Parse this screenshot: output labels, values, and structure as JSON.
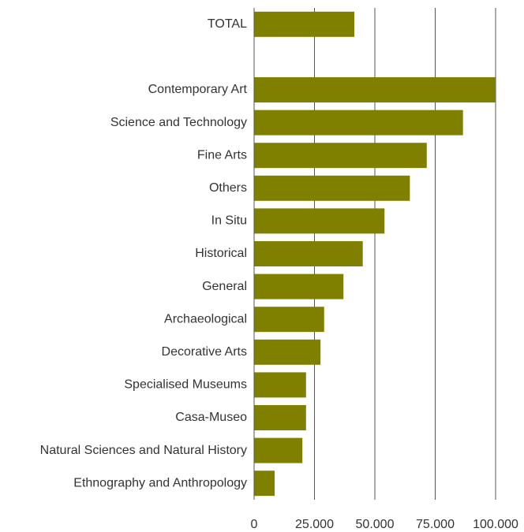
{
  "chart_data": {
    "type": "bar",
    "orientation": "horizontal",
    "categories": [
      "TOTAL",
      "",
      "Contemporary Art",
      "Science and Technology",
      "Fine Arts",
      "Others",
      "In Situ",
      "Historical",
      "General",
      "Archaeological",
      "Decorative Arts",
      "Specialised Museums",
      "Casa-Museo",
      "Natural Sciences and Natural History",
      "Ethnography and Anthropology"
    ],
    "values": [
      41500,
      null,
      100000,
      86500,
      71500,
      64500,
      54000,
      45000,
      37000,
      29000,
      27500,
      21500,
      21500,
      20000,
      8500
    ],
    "xlim": [
      0,
      100000
    ],
    "x_ticks": [
      0,
      25000,
      50000,
      75000,
      100000
    ],
    "x_tick_labels": [
      "0",
      "25.000",
      "50.000",
      "75.000",
      "100.000"
    ],
    "grid": "vertical",
    "bar_color": "#808000",
    "title": "",
    "xlabel": "",
    "ylabel": ""
  }
}
